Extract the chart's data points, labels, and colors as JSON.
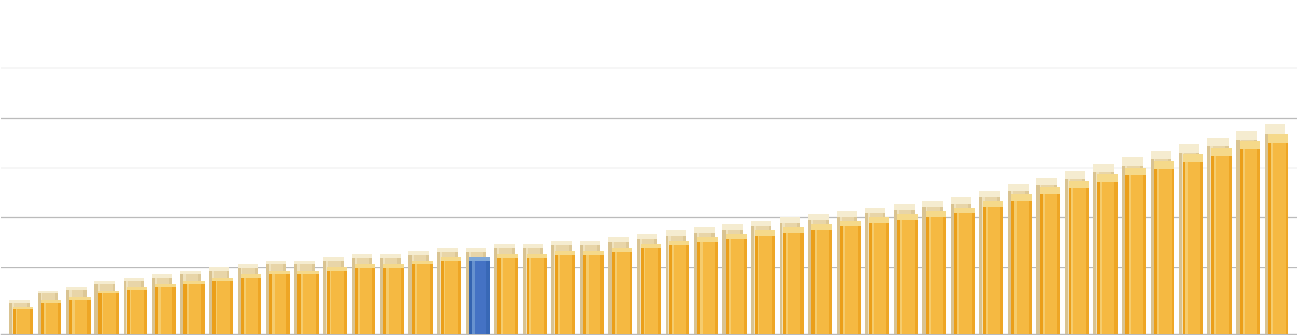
{
  "bar1_values": [
    8,
    10,
    11,
    13,
    14,
    15,
    16,
    17,
    18,
    19,
    19,
    20,
    21,
    21,
    22,
    23,
    23,
    24,
    24,
    25,
    25,
    26,
    27,
    28,
    29,
    30,
    31,
    32,
    33,
    34,
    35,
    36,
    37,
    38,
    40,
    42,
    44,
    46,
    48,
    50,
    52,
    54,
    56,
    58,
    60
  ],
  "bar2_values": [
    10,
    13,
    14,
    16,
    17,
    18,
    19,
    20,
    21,
    22,
    22,
    23,
    24,
    24,
    25,
    26,
    26,
    27,
    27,
    28,
    28,
    29,
    30,
    31,
    32,
    33,
    34,
    35,
    36,
    37,
    38,
    39,
    40,
    41,
    43,
    45,
    47,
    49,
    51,
    53,
    55,
    57,
    59,
    61,
    63
  ],
  "blue_index": 16,
  "bar_color_dark": "#E8940A",
  "bar_color_mid": "#F5B942",
  "bar_color_light": "#F5D98A",
  "bar_color_highlight": "#F0E0B0",
  "bar_color_blue_dark": "#2E5FAA",
  "bar_color_blue_mid": "#4472C4",
  "bar_color_blue_light": "#7FA8D8",
  "background_color": "#FFFFFF",
  "grid_color": "#BBBBBB",
  "n_gridlines": 5,
  "bar_width": 0.72,
  "ylim": [
    0,
    100
  ],
  "figsize": [
    16.49,
    4.26
  ],
  "dpi": 100
}
